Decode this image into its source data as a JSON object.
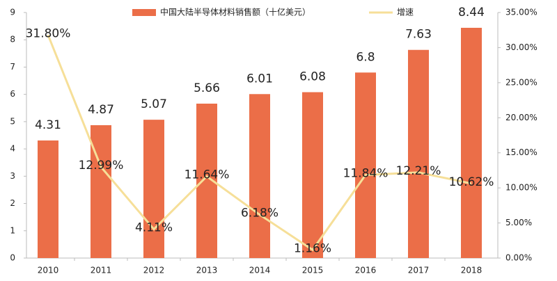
{
  "chart_data": {
    "type": "bar_line",
    "categories": [
      "2010",
      "2011",
      "2012",
      "2013",
      "2014",
      "2015",
      "2016",
      "2017",
      "2018"
    ],
    "series": [
      {
        "name": "中国大陆半导体材料销售额（十亿美元）",
        "type": "bar",
        "color": "#eb6e48",
        "values": [
          4.31,
          4.87,
          5.07,
          5.66,
          6.01,
          6.08,
          6.8,
          7.63,
          8.44
        ]
      },
      {
        "name": "增速",
        "type": "line",
        "axis": "y2",
        "color": "#f6df98",
        "values": [
          31.8,
          12.99,
          4.11,
          11.64,
          6.18,
          1.16,
          11.84,
          12.21,
          10.62
        ],
        "value_labels": [
          "31.80%",
          "12.99%",
          "4.11%",
          "11.64%",
          "6.18%",
          "1.16%",
          "11.84%",
          "12.21%",
          "10.62%"
        ]
      }
    ],
    "ylim": [
      0,
      9
    ],
    "yticks": [
      0,
      1,
      2,
      3,
      4,
      5,
      6,
      7,
      8,
      9
    ],
    "y2lim": [
      0,
      35
    ],
    "y2ticks": [
      {
        "value": 0,
        "label": "0.00%"
      },
      {
        "value": 5,
        "label": "5.00%"
      },
      {
        "value": 10,
        "label": "10.00%"
      },
      {
        "value": 15,
        "label": "15.00%"
      },
      {
        "value": 20,
        "label": "20.00%"
      },
      {
        "value": 25,
        "label": "25.00%"
      },
      {
        "value": 30,
        "label": "30.00%"
      },
      {
        "value": 35,
        "label": "35.00%"
      }
    ],
    "legend": "top"
  }
}
